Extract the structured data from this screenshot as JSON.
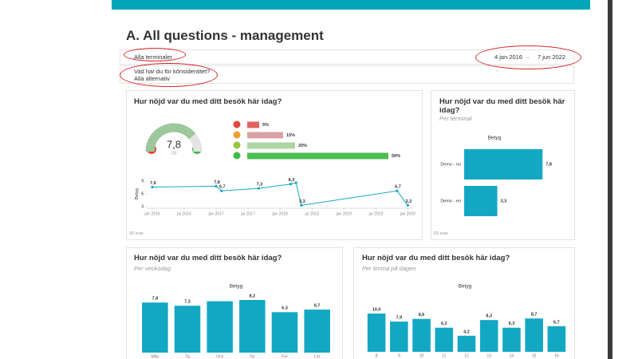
{
  "page_title": "A. All questions - management",
  "filters": {
    "terminal": "Alla terminaler",
    "date_from": "4 jan 2016",
    "date_arrow": "→",
    "date_to": "7 jun 2022",
    "question": "Vad har du för könsidentitet?",
    "answer": "Alla alternativ"
  },
  "chart_data": [
    {
      "type": "gauge",
      "title": "Hur nöjd var du med ditt besök här idag?",
      "value": 7.8,
      "value_label": "7,8",
      "max_label": "/10",
      "ylim": [
        0,
        10
      ],
      "color": "#9cc89c",
      "note": "93 svar"
    },
    {
      "type": "hbar",
      "categories": [
        null,
        null,
        null,
        null
      ],
      "values": [
        5,
        15,
        20,
        59
      ],
      "value_labels": [
        "5%",
        "15%",
        "20%",
        "59%"
      ],
      "colors": [
        "#e26262",
        "#d9a3a3",
        "#acd6a4",
        "#4cbd52"
      ],
      "xlim": [
        0,
        100
      ]
    },
    {
      "type": "line",
      "ylabel": "Betyg",
      "color": "#12a8c4",
      "x": [
        "2016-01",
        "2017-01",
        "2017-02",
        "2017-09",
        "2018-03",
        "2018-04",
        "2018-05",
        "2019-11",
        "2020-01"
      ],
      "values": [
        7.6,
        7.8,
        6.7,
        7.3,
        8.3,
        8.6,
        3.3,
        6.7,
        3.3
      ],
      "value_labels": [
        "7,6",
        "7,8",
        "6,7",
        "7,3",
        "8,3",
        null,
        "3,3",
        "6,7",
        "3,3"
      ],
      "xlim": [
        "2015-12",
        "2020-02"
      ],
      "xticks": [
        {
          "value": "2016-01",
          "label": "jan 2016"
        },
        {
          "value": "2016-07",
          "label": "jul 2016"
        },
        {
          "value": "2017-01",
          "label": "jan 2017"
        },
        {
          "value": "2017-07",
          "label": "jul 2017"
        },
        {
          "value": "2018-01",
          "label": "jan 2018"
        },
        {
          "value": "2018-07",
          "label": "jul 2018"
        },
        {
          "value": "2019-01",
          "label": "jan 2019"
        },
        {
          "value": "2019-07",
          "label": "jul 2019"
        },
        {
          "value": "2020-01",
          "label": "jan 2020"
        }
      ],
      "ylim": [
        3,
        9
      ],
      "yticks": [
        9,
        6,
        3
      ]
    },
    {
      "type": "hbar",
      "title": "Hur nöjd var du med ditt besök här idag?",
      "subtitle": "Per terminal",
      "chart_title": "Betyg",
      "color": "#12a8c4",
      "categories": [
        "Demo - no",
        "Demo - en"
      ],
      "values": [
        7.8,
        3.3
      ],
      "value_labels": [
        "7,8",
        "3,3"
      ],
      "xlim": [
        0,
        10
      ],
      "note": "93 svar"
    },
    {
      "type": "bar",
      "title": "Hur nöjd var du med ditt besök här idag?",
      "subtitle": "Per veckodag",
      "chart_title": "Betyg",
      "color": "#12a8c4",
      "categories": [
        "Mån",
        "Tis",
        "Ons",
        "Tor",
        "Fre",
        "Lör"
      ],
      "values": [
        7.8,
        7.3,
        8.0,
        8.2,
        6.3,
        6.7
      ],
      "value_labels": [
        "7,8",
        "7,3",
        null,
        "8,2",
        "6,3",
        "6,7"
      ],
      "ylim": [
        0,
        10
      ]
    },
    {
      "type": "bar",
      "title": "Hur nöjd var du med ditt besök här idag?",
      "subtitle": "Per timma på dagen",
      "chart_title": "Betyg",
      "color": "#12a8c4",
      "categories": [
        "8",
        "9",
        "10",
        "11",
        "12",
        "13",
        "14",
        "15",
        "16"
      ],
      "values": [
        10.0,
        7.9,
        8.6,
        6.3,
        4.2,
        8.3,
        6.3,
        8.7,
        6.7
      ],
      "value_labels": [
        "10,0",
        "7,9",
        "8,6",
        "6,3",
        "4,2",
        "8,3",
        "6,3",
        "8,7",
        "6,7"
      ],
      "ylim": [
        0,
        10
      ]
    }
  ]
}
